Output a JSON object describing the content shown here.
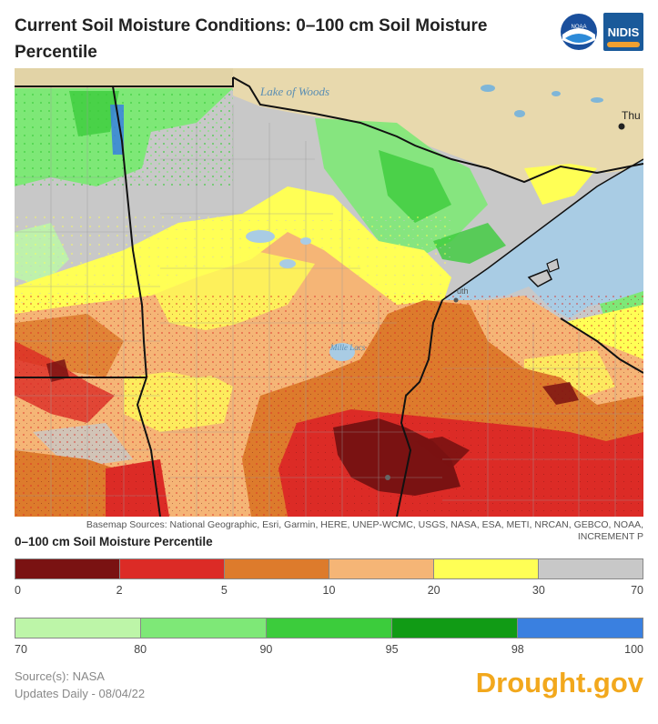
{
  "title": "Current Soil Moisture Conditions: 0–100 cm Soil Moisture Percentile",
  "logos": {
    "noaa": "NOAA",
    "nidis": "NIDIS"
  },
  "map": {
    "labels": {
      "lake_of_woods": "Lake of Woods",
      "thunder_bay": "Thu",
      "duluth": "uth",
      "mille_lacs": "Mille Lacs"
    }
  },
  "attribution_line1": "Basemap Sources: National Geographic, Esri, Garmin, HERE, UNEP-WCMC, USGS, NASA, ESA, METI, NRCAN, GEBCO, NOAA,",
  "attribution_line2": "INCREMENT P",
  "legend": {
    "title": "0–100 cm Soil Moisture Percentile",
    "dry_colors": [
      "#7a1212",
      "#dc2b26",
      "#dd7b2c",
      "#f5b576",
      "#ffff55",
      "#c8c8c8"
    ],
    "dry_ticks": [
      "0",
      "2",
      "5",
      "10",
      "20",
      "30",
      "70"
    ],
    "wet_colors": [
      "#bdf5a8",
      "#7ee877",
      "#3ccc3c",
      "#119b15",
      "#3a80e0"
    ],
    "wet_ticks": [
      "70",
      "80",
      "90",
      "95",
      "98",
      "100"
    ]
  },
  "source": "Source(s): NASA",
  "updated": "Updates Daily - 08/04/22",
  "brand": "Drought.gov"
}
